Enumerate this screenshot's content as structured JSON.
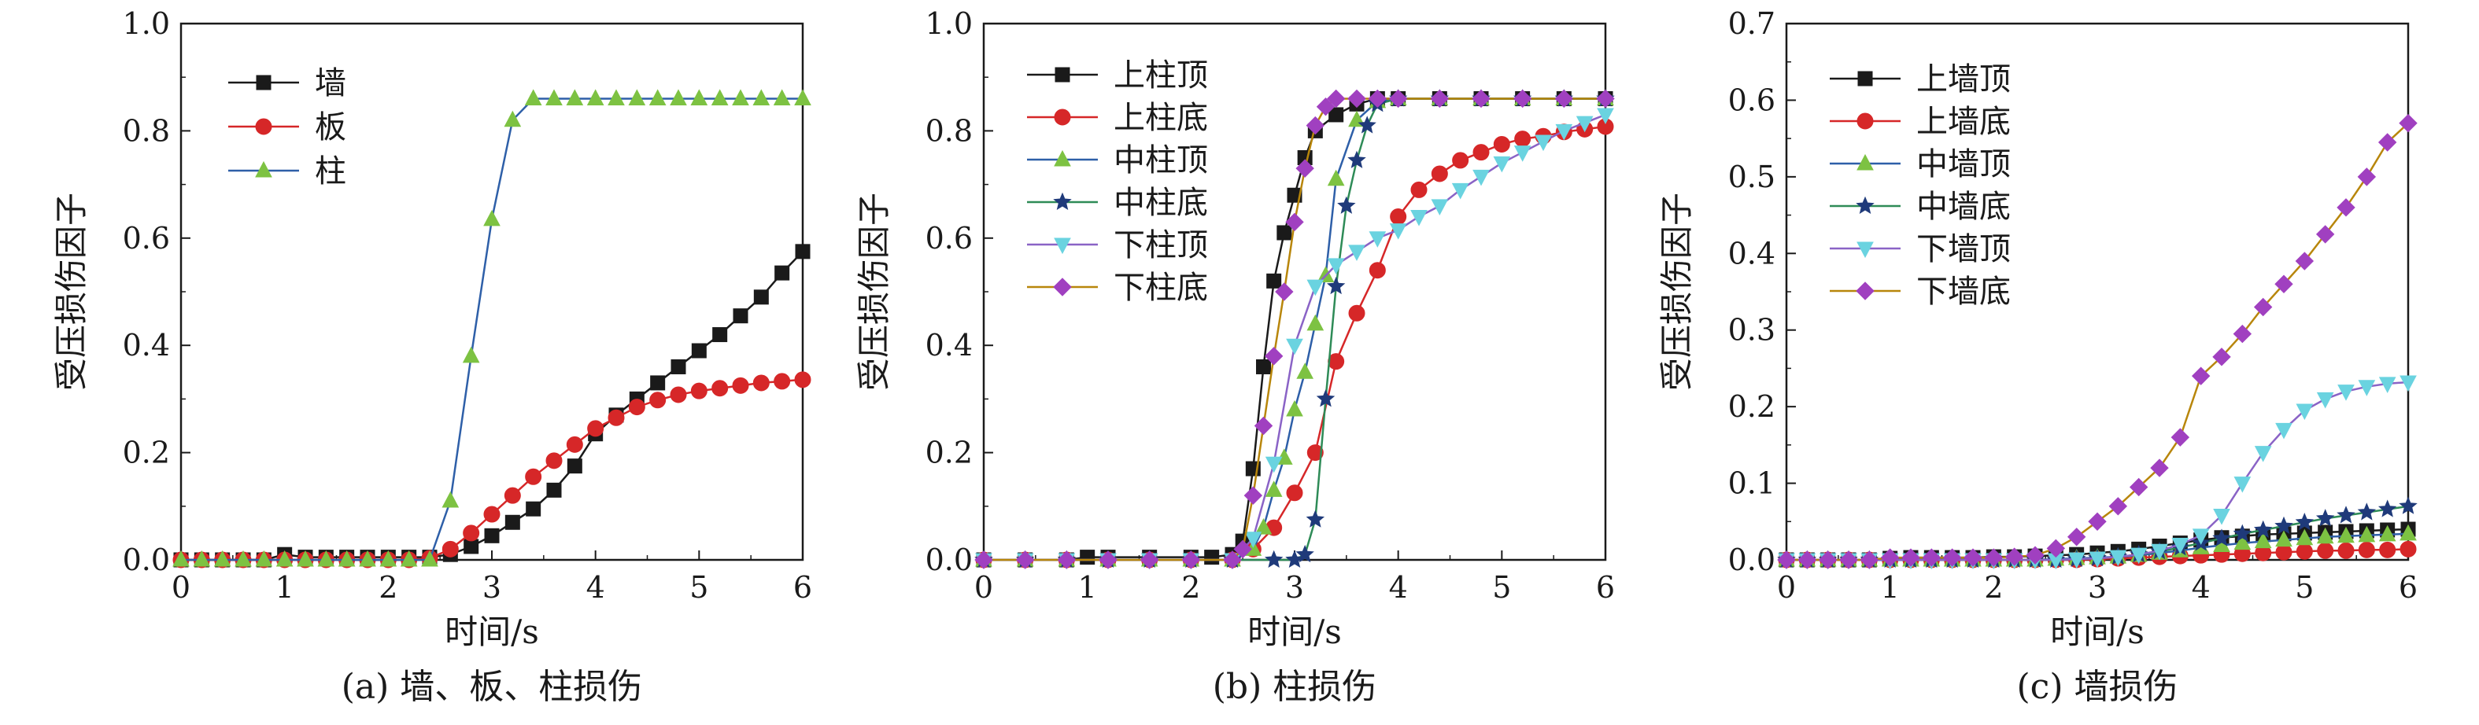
{
  "chart_data": [
    {
      "type": "line",
      "caption": "(a) 墙、板、柱损伤",
      "xlabel": "时间/s",
      "ylabel": "受压损伤因子",
      "xlim": [
        0,
        6
      ],
      "ylim": [
        0,
        1.0
      ],
      "xticks": [
        0,
        1,
        2,
        3,
        4,
        5,
        6
      ],
      "yticks": [
        "0.0",
        "0.2",
        "0.4",
        "0.6",
        "0.8",
        "1.0"
      ],
      "legend_position": "top-left",
      "series": [
        {
          "name": "墙",
          "color": "#1a1a1a",
          "marker": "square",
          "x": [
            0,
            0.2,
            0.4,
            0.6,
            0.8,
            1,
            1.2,
            1.4,
            1.6,
            1.8,
            2,
            2.2,
            2.4,
            2.6,
            2.8,
            3,
            3.2,
            3.4,
            3.6,
            3.8,
            4,
            4.2,
            4.4,
            4.6,
            4.8,
            5,
            5.2,
            5.4,
            5.6,
            5.8,
            6
          ],
          "y": [
            0,
            0,
            0,
            0,
            0,
            0.01,
            0.005,
            0.005,
            0.005,
            0.005,
            0.005,
            0.005,
            0.005,
            0.01,
            0.025,
            0.045,
            0.07,
            0.095,
            0.13,
            0.175,
            0.235,
            0.27,
            0.3,
            0.33,
            0.36,
            0.39,
            0.42,
            0.455,
            0.49,
            0.535,
            0.575
          ]
        },
        {
          "name": "板",
          "color": "#d62728",
          "marker": "circle",
          "x": [
            0,
            0.2,
            0.4,
            0.6,
            0.8,
            1,
            1.2,
            1.4,
            1.6,
            1.8,
            2,
            2.2,
            2.4,
            2.6,
            2.8,
            3,
            3.2,
            3.4,
            3.6,
            3.8,
            4,
            4.2,
            4.4,
            4.6,
            4.8,
            5,
            5.2,
            5.4,
            5.6,
            5.8,
            6
          ],
          "y": [
            0,
            0,
            0,
            0,
            0,
            0,
            0,
            0,
            0,
            0,
            0,
            0,
            0.003,
            0.02,
            0.05,
            0.085,
            0.12,
            0.155,
            0.185,
            0.215,
            0.245,
            0.265,
            0.285,
            0.298,
            0.308,
            0.315,
            0.32,
            0.325,
            0.33,
            0.333,
            0.336
          ]
        },
        {
          "name": "柱",
          "color": "#2e5fa8",
          "marker": "triangle-up",
          "markerColor": "#7dc242",
          "x": [
            0,
            0.2,
            0.4,
            0.6,
            0.8,
            1,
            1.2,
            1.4,
            1.6,
            1.8,
            2,
            2.2,
            2.4,
            2.6,
            2.8,
            3,
            3.2,
            3.4,
            3.6,
            3.8,
            4,
            4.2,
            4.4,
            4.6,
            4.8,
            5,
            5.2,
            5.4,
            5.6,
            5.8,
            6
          ],
          "y": [
            0,
            0,
            0,
            0,
            0,
            0,
            0,
            0,
            0,
            0,
            0,
            0,
            0,
            0.11,
            0.38,
            0.635,
            0.82,
            0.86,
            0.86,
            0.86,
            0.86,
            0.86,
            0.86,
            0.86,
            0.86,
            0.86,
            0.86,
            0.86,
            0.86,
            0.86,
            0.86
          ]
        }
      ]
    },
    {
      "type": "line",
      "caption": "(b) 柱损伤",
      "xlabel": "时间/s",
      "ylabel": "受压损伤因子",
      "xlim": [
        0,
        6
      ],
      "ylim": [
        0,
        1.0
      ],
      "xticks": [
        0,
        1,
        2,
        3,
        4,
        5,
        6
      ],
      "yticks": [
        "0.0",
        "0.2",
        "0.4",
        "0.6",
        "0.8",
        "1.0"
      ],
      "legend_position": "top-left",
      "series": [
        {
          "name": "上柱顶",
          "color": "#1a1a1a",
          "marker": "square",
          "x": [
            0,
            0.4,
            0.8,
            1,
            1.2,
            1.6,
            2,
            2.2,
            2.4,
            2.5,
            2.6,
            2.7,
            2.8,
            2.9,
            3,
            3.1,
            3.2,
            3.4,
            3.6,
            3.8,
            4,
            4.4,
            4.8,
            5.2,
            5.6,
            6
          ],
          "y": [
            0,
            0,
            0,
            0.005,
            0.005,
            0.005,
            0.005,
            0.005,
            0.01,
            0.035,
            0.17,
            0.36,
            0.52,
            0.61,
            0.68,
            0.75,
            0.8,
            0.83,
            0.85,
            0.86,
            0.86,
            0.86,
            0.86,
            0.86,
            0.86,
            0.86
          ]
        },
        {
          "name": "上柱底",
          "color": "#d62728",
          "marker": "circle",
          "x": [
            0,
            0.4,
            0.8,
            1.2,
            1.6,
            2,
            2.4,
            2.6,
            2.8,
            3,
            3.2,
            3.4,
            3.6,
            3.8,
            4,
            4.2,
            4.4,
            4.6,
            4.8,
            5,
            5.2,
            5.4,
            5.6,
            5.8,
            6
          ],
          "y": [
            0,
            0,
            0,
            0,
            0,
            0,
            0,
            0.02,
            0.06,
            0.125,
            0.2,
            0.37,
            0.46,
            0.54,
            0.64,
            0.69,
            0.72,
            0.745,
            0.76,
            0.775,
            0.785,
            0.79,
            0.798,
            0.803,
            0.808
          ]
        },
        {
          "name": "中柱顶",
          "color": "#2e5fa8",
          "marker": "triangle-up",
          "markerColor": "#7dc242",
          "x": [
            0,
            0.4,
            0.8,
            1.2,
            1.6,
            2,
            2.4,
            2.6,
            2.7,
            2.8,
            2.9,
            3,
            3.1,
            3.2,
            3.3,
            3.4,
            3.6,
            3.8,
            4,
            4.4,
            4.8,
            5.2,
            5.6,
            6
          ],
          "y": [
            0,
            0,
            0,
            0,
            0,
            0,
            0,
            0.02,
            0.06,
            0.13,
            0.19,
            0.28,
            0.35,
            0.44,
            0.53,
            0.71,
            0.82,
            0.855,
            0.86,
            0.86,
            0.86,
            0.86,
            0.86,
            0.86
          ]
        },
        {
          "name": "中柱底",
          "color": "#2e8b57",
          "marker": "star",
          "markerColor": "#1f3a7a",
          "x": [
            0,
            0.4,
            0.8,
            1.2,
            1.6,
            2,
            2.4,
            2.8,
            3,
            3.1,
            3.2,
            3.3,
            3.4,
            3.5,
            3.6,
            3.7,
            3.8,
            4,
            4.4,
            4.8,
            5.2,
            5.6,
            6
          ],
          "y": [
            0,
            0,
            0,
            0,
            0,
            0,
            0,
            0,
            0,
            0.01,
            0.075,
            0.3,
            0.51,
            0.66,
            0.745,
            0.81,
            0.85,
            0.86,
            0.86,
            0.86,
            0.86,
            0.86,
            0.86
          ]
        },
        {
          "name": "下柱顶",
          "color": "#8a63c6",
          "marker": "triangle-down",
          "markerColor": "#6ad3e0",
          "x": [
            0,
            0.4,
            0.8,
            1.2,
            1.6,
            2,
            2.4,
            2.6,
            2.8,
            3,
            3.2,
            3.4,
            3.6,
            3.8,
            4,
            4.2,
            4.4,
            4.6,
            4.8,
            5,
            5.2,
            5.4,
            5.6,
            5.8,
            6
          ],
          "y": [
            0,
            0,
            0,
            0,
            0,
            0,
            0,
            0.04,
            0.18,
            0.4,
            0.51,
            0.55,
            0.575,
            0.6,
            0.615,
            0.64,
            0.66,
            0.69,
            0.715,
            0.74,
            0.76,
            0.78,
            0.8,
            0.815,
            0.83
          ]
        },
        {
          "name": "下柱底",
          "color": "#b8860b",
          "marker": "diamond",
          "markerColor": "#a040c0",
          "x": [
            0,
            0.4,
            0.8,
            1.2,
            1.6,
            2,
            2.4,
            2.5,
            2.6,
            2.7,
            2.8,
            2.9,
            3,
            3.1,
            3.2,
            3.3,
            3.4,
            3.6,
            3.8,
            4,
            4.4,
            4.8,
            5.2,
            5.6,
            6
          ],
          "y": [
            0,
            0,
            0,
            0,
            0,
            0,
            0,
            0.02,
            0.12,
            0.25,
            0.38,
            0.5,
            0.63,
            0.73,
            0.81,
            0.845,
            0.86,
            0.86,
            0.86,
            0.86,
            0.86,
            0.86,
            0.86,
            0.86,
            0.86
          ]
        }
      ]
    },
    {
      "type": "line",
      "caption": "(c) 墙损伤",
      "xlabel": "时间/s",
      "ylabel": "受压损伤因子",
      "xlim": [
        0,
        6
      ],
      "ylim": [
        0,
        0.7
      ],
      "xticks": [
        0,
        1,
        2,
        3,
        4,
        5,
        6
      ],
      "yticks": [
        "0.0",
        "0.1",
        "0.2",
        "0.3",
        "0.4",
        "0.5",
        "0.6",
        "0.7"
      ],
      "legend_position": "top-left",
      "series": [
        {
          "name": "上墙顶",
          "color": "#1a1a1a",
          "marker": "square",
          "x": [
            0,
            0.2,
            0.4,
            0.6,
            0.8,
            1,
            1.2,
            1.4,
            1.6,
            1.8,
            2,
            2.2,
            2.4,
            2.6,
            2.8,
            3,
            3.2,
            3.4,
            3.6,
            3.8,
            4,
            4.2,
            4.4,
            4.6,
            4.8,
            5,
            5.2,
            5.4,
            5.6,
            5.8,
            6
          ],
          "y": [
            0,
            0,
            0,
            0,
            0,
            0.002,
            0.003,
            0.003,
            0.003,
            0.003,
            0.004,
            0.004,
            0.005,
            0.006,
            0.007,
            0.009,
            0.011,
            0.014,
            0.018,
            0.022,
            0.026,
            0.029,
            0.031,
            0.033,
            0.034,
            0.035,
            0.036,
            0.037,
            0.038,
            0.039,
            0.04
          ]
        },
        {
          "name": "上墙底",
          "color": "#d62728",
          "marker": "circle",
          "x": [
            0,
            0.2,
            0.4,
            0.6,
            0.8,
            1,
            1.2,
            1.4,
            1.6,
            1.8,
            2,
            2.2,
            2.4,
            2.6,
            2.8,
            3,
            3.2,
            3.4,
            3.6,
            3.8,
            4,
            4.2,
            4.4,
            4.6,
            4.8,
            5,
            5.2,
            5.4,
            5.6,
            5.8,
            6
          ],
          "y": [
            0,
            0,
            0,
            0,
            0,
            0,
            0,
            0,
            0,
            0,
            0,
            0,
            0,
            0,
            0,
            0.001,
            0.002,
            0.003,
            0.004,
            0.005,
            0.006,
            0.007,
            0.008,
            0.009,
            0.01,
            0.011,
            0.012,
            0.012,
            0.013,
            0.013,
            0.014
          ]
        },
        {
          "name": "中墙顶",
          "color": "#2e5fa8",
          "marker": "triangle-up",
          "markerColor": "#7dc242",
          "x": [
            0,
            0.2,
            0.4,
            0.6,
            0.8,
            1,
            1.2,
            1.4,
            1.6,
            1.8,
            2,
            2.2,
            2.4,
            2.6,
            2.8,
            3,
            3.2,
            3.4,
            3.6,
            3.8,
            4,
            4.2,
            4.4,
            4.6,
            4.8,
            5,
            5.2,
            5.4,
            5.6,
            5.8,
            6
          ],
          "y": [
            0,
            0,
            0,
            0,
            0,
            0,
            0,
            0,
            0,
            0,
            0,
            0,
            0,
            0.001,
            0.002,
            0.003,
            0.004,
            0.006,
            0.009,
            0.012,
            0.016,
            0.019,
            0.022,
            0.024,
            0.026,
            0.028,
            0.03,
            0.031,
            0.032,
            0.033,
            0.034
          ]
        },
        {
          "name": "中墙底",
          "color": "#2e8b57",
          "marker": "star",
          "markerColor": "#1f3a7a",
          "x": [
            0,
            0.2,
            0.4,
            0.6,
            0.8,
            1,
            1.2,
            1.4,
            1.6,
            1.8,
            2,
            2.2,
            2.4,
            2.6,
            2.8,
            3,
            3.2,
            3.4,
            3.6,
            3.8,
            4,
            4.2,
            4.4,
            4.6,
            4.8,
            5,
            5.2,
            5.4,
            5.6,
            5.8,
            6
          ],
          "y": [
            0,
            0,
            0,
            0,
            0,
            0,
            0,
            0,
            0,
            0,
            0,
            0,
            0,
            0,
            0.001,
            0.002,
            0.004,
            0.007,
            0.011,
            0.016,
            0.022,
            0.028,
            0.034,
            0.039,
            0.044,
            0.049,
            0.054,
            0.058,
            0.062,
            0.066,
            0.07
          ]
        },
        {
          "name": "下墙顶",
          "color": "#8a63c6",
          "marker": "triangle-down",
          "markerColor": "#6ad3e0",
          "x": [
            0,
            0.2,
            0.4,
            0.6,
            0.8,
            1,
            1.2,
            1.4,
            1.6,
            1.8,
            2,
            2.2,
            2.4,
            2.6,
            2.8,
            3,
            3.2,
            3.4,
            3.6,
            3.8,
            4,
            4.2,
            4.4,
            4.6,
            4.8,
            5,
            5.2,
            5.4,
            5.6,
            5.8,
            6
          ],
          "y": [
            0,
            0,
            0,
            0,
            0,
            0,
            0,
            0,
            0,
            0,
            0,
            0,
            0,
            0,
            0.001,
            0.002,
            0.004,
            0.007,
            0.012,
            0.02,
            0.032,
            0.058,
            0.1,
            0.14,
            0.17,
            0.195,
            0.21,
            0.22,
            0.226,
            0.23,
            0.232
          ]
        },
        {
          "name": "下墙底",
          "color": "#b8860b",
          "marker": "diamond",
          "markerColor": "#a040c0",
          "x": [
            0,
            0.2,
            0.4,
            0.6,
            0.8,
            1,
            1.2,
            1.4,
            1.6,
            1.8,
            2,
            2.2,
            2.4,
            2.6,
            2.8,
            3,
            3.2,
            3.4,
            3.6,
            3.8,
            4,
            4.2,
            4.4,
            4.6,
            4.8,
            5,
            5.2,
            5.4,
            5.6,
            5.8,
            6
          ],
          "y": [
            0,
            0,
            0,
            0,
            0,
            0.003,
            0.003,
            0.003,
            0.003,
            0.003,
            0.003,
            0.004,
            0.006,
            0.015,
            0.03,
            0.05,
            0.07,
            0.095,
            0.12,
            0.16,
            0.24,
            0.265,
            0.295,
            0.33,
            0.36,
            0.39,
            0.425,
            0.46,
            0.5,
            0.545,
            0.57
          ]
        }
      ]
    }
  ]
}
